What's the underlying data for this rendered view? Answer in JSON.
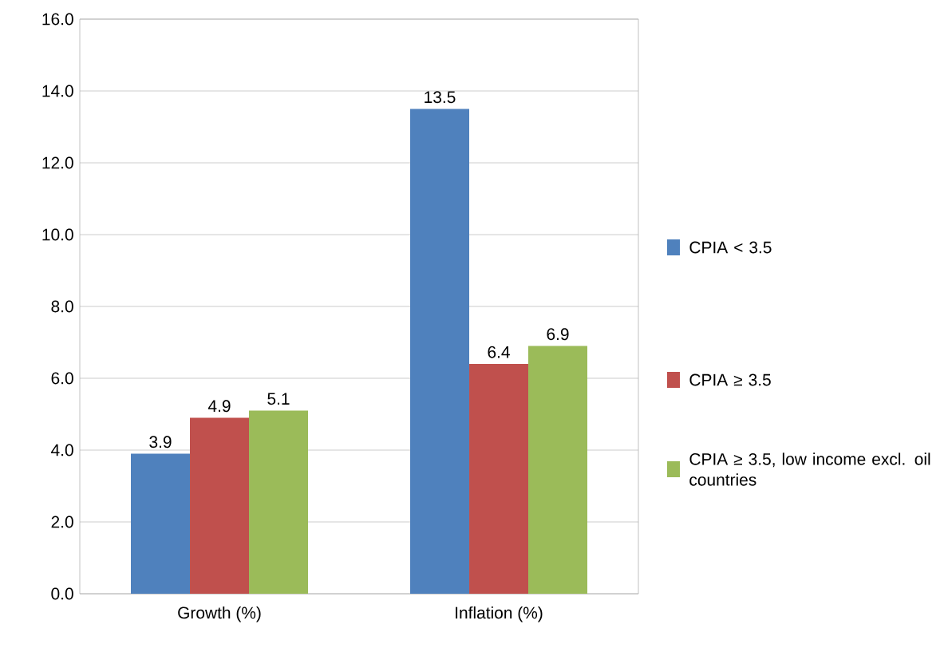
{
  "chart_data": {
    "type": "bar",
    "categories": [
      "Growth (%)",
      "Inflation (%)"
    ],
    "series": [
      {
        "name": "CPIA < 3.5",
        "color": "#4f81bd",
        "values": [
          3.9,
          13.5
        ]
      },
      {
        "name": "CPIA ≥ 3.5",
        "color": "#c0504d",
        "values": [
          4.9,
          6.4
        ]
      },
      {
        "name": "CPIA ≥ 3.5, low income excl. oil countries",
        "color": "#9bbb59",
        "values": [
          5.1,
          6.9
        ]
      }
    ],
    "ylim": [
      0,
      16
    ],
    "yticks": [
      {
        "value": 0,
        "label": "0.0"
      },
      {
        "value": 2,
        "label": "2.0"
      },
      {
        "value": 4,
        "label": "4.0"
      },
      {
        "value": 6,
        "label": "6.0"
      },
      {
        "value": 8,
        "label": "8.0"
      },
      {
        "value": 10,
        "label": "10.0"
      },
      {
        "value": 12,
        "label": "12.0"
      },
      {
        "value": 14,
        "label": "14.0"
      },
      {
        "value": 16,
        "label": "16.0"
      }
    ],
    "grid": "y",
    "legend": "right",
    "data_labels": true
  }
}
